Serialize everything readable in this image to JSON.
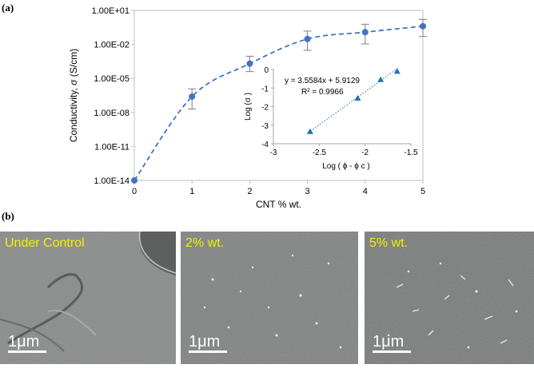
{
  "panels": {
    "a": "(a)",
    "b": "(b)"
  },
  "chart_data": [
    {
      "type": "line",
      "title": "",
      "xlabel": "CNT % wt.",
      "ylabel": "Conductivity, σ (S/cm)",
      "yscale": "log",
      "x": [
        0,
        1,
        2,
        3,
        4,
        5
      ],
      "xticks": [
        "0",
        "1",
        "2",
        "3",
        "4",
        "5"
      ],
      "yticks": [
        "1.00E-14",
        "1.00E-11",
        "1.00E-08",
        "1.00E-05",
        "1.00E-02",
        "1.00E+01"
      ],
      "ytick_values": [
        1e-14,
        1e-11,
        1e-08,
        1e-05,
        0.01,
        10
      ],
      "xlim": [
        0,
        5
      ],
      "ylim": [
        1e-14,
        10
      ],
      "series": [
        {
          "values": [
            1e-14,
            2.5e-07,
            0.0002,
            0.03,
            0.12,
            0.4
          ],
          "err_low": [
            1e-14,
            2e-08,
            4e-05,
            0.003,
            0.011,
            0.05
          ],
          "err_high": [
            1e-14,
            1.2e-06,
            0.0009,
            0.15,
            0.6,
            1.6
          ],
          "color": "#4472c4"
        }
      ],
      "grid": false
    },
    {
      "type": "scatter",
      "title": "",
      "xlabel": "Log ( ϕ - ϕ c )",
      "ylabel": "Log (σ )",
      "x": [
        -2.6,
        -2.08,
        -1.83,
        -1.65
      ],
      "y": [
        -3.35,
        -1.55,
        -0.55,
        -0.1
      ],
      "xlim": [
        -3,
        -1.5
      ],
      "ylim": [
        -4,
        0
      ],
      "xticks": [
        "-3",
        "-2.5",
        "-2",
        "-1.5"
      ],
      "xtick_values": [
        -3,
        -2.5,
        -2,
        -1.5
      ],
      "yticks": [
        "-4",
        "-3",
        "-2",
        "-1",
        "0"
      ],
      "ytick_values": [
        -4,
        -3,
        -2,
        -1,
        0
      ],
      "trendline": {
        "slope": 3.5584,
        "intercept": 5.9129
      },
      "equation": "y = 3.5584x + 5.9129",
      "r2": "R² = 0.9966",
      "color": "#1f6fb2",
      "grid": false
    }
  ],
  "images": [
    {
      "label": "Under Control",
      "scale": "1μm"
    },
    {
      "label": "2% wt.",
      "scale": "1μm"
    },
    {
      "label": "5% wt.",
      "scale": "1μm"
    }
  ]
}
